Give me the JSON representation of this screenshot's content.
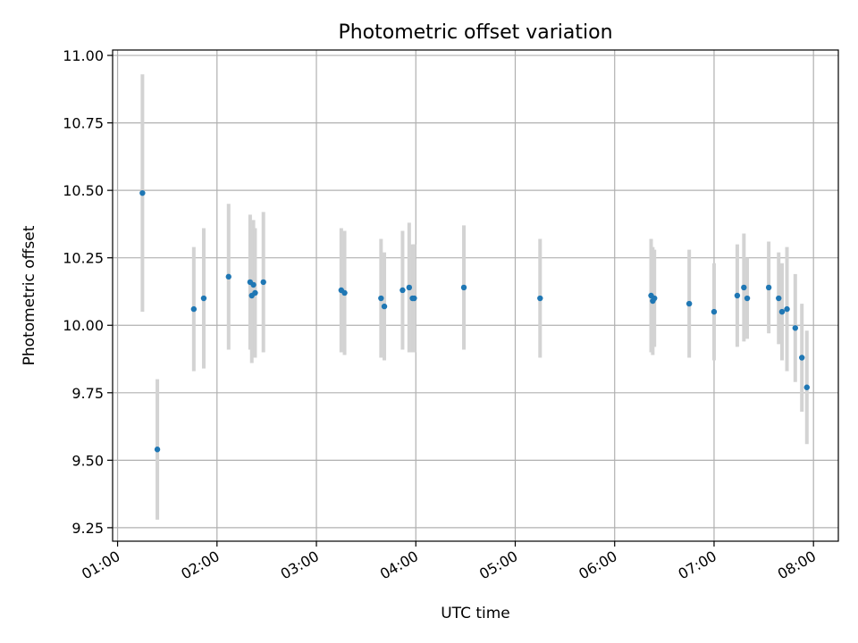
{
  "chart_data": {
    "type": "scatter",
    "title": "Photometric offset variation",
    "xlabel": "UTC time",
    "ylabel": "Photometric offset",
    "xlim": [
      "00:57",
      "08:15"
    ],
    "ylim": [
      9.2,
      11.02
    ],
    "xticks": [
      "01:00",
      "02:00",
      "03:00",
      "04:00",
      "05:00",
      "06:00",
      "07:00",
      "08:00"
    ],
    "yticks": [
      "9.25",
      "9.50",
      "9.75",
      "10.00",
      "10.25",
      "10.50",
      "10.75",
      "11.00"
    ],
    "grid": true,
    "legend": "none",
    "colors": {
      "points": "#1f77b4",
      "error_bars": "#d3d3d3",
      "grid": "#b0b0b0"
    },
    "series": [
      {
        "x": [
          "01:15",
          "01:24",
          "01:46",
          "01:52",
          "02:07",
          "02:20",
          "02:21",
          "02:22",
          "02:23",
          "02:28",
          "03:15",
          "03:17",
          "03:39",
          "03:41",
          "03:52",
          "03:56",
          "03:58",
          "03:59",
          "04:29",
          "05:15",
          "06:22",
          "06:23",
          "06:24",
          "06:45",
          "07:00",
          "07:14",
          "07:18",
          "07:20",
          "07:33",
          "07:39",
          "07:41",
          "07:44",
          "07:49",
          "07:53",
          "07:56"
        ],
        "y": [
          10.49,
          9.54,
          10.06,
          10.1,
          10.18,
          10.16,
          10.11,
          10.15,
          10.12,
          10.16,
          10.13,
          10.12,
          10.1,
          10.07,
          10.13,
          10.14,
          10.1,
          10.1,
          10.14,
          10.1,
          10.11,
          10.09,
          10.1,
          10.08,
          10.05,
          10.11,
          10.14,
          10.1,
          10.14,
          10.1,
          10.05,
          10.06,
          9.99,
          9.88,
          9.77
        ],
        "error": [
          0.44,
          0.26,
          0.23,
          0.26,
          0.27,
          0.25,
          0.25,
          0.24,
          0.24,
          0.26,
          0.23,
          0.23,
          0.22,
          0.2,
          0.22,
          0.24,
          0.2,
          0.2,
          0.23,
          0.22,
          0.21,
          0.2,
          0.18,
          0.2,
          0.18,
          0.19,
          0.2,
          0.15,
          0.17,
          0.17,
          0.18,
          0.23,
          0.2,
          0.2,
          0.21
        ]
      }
    ]
  }
}
